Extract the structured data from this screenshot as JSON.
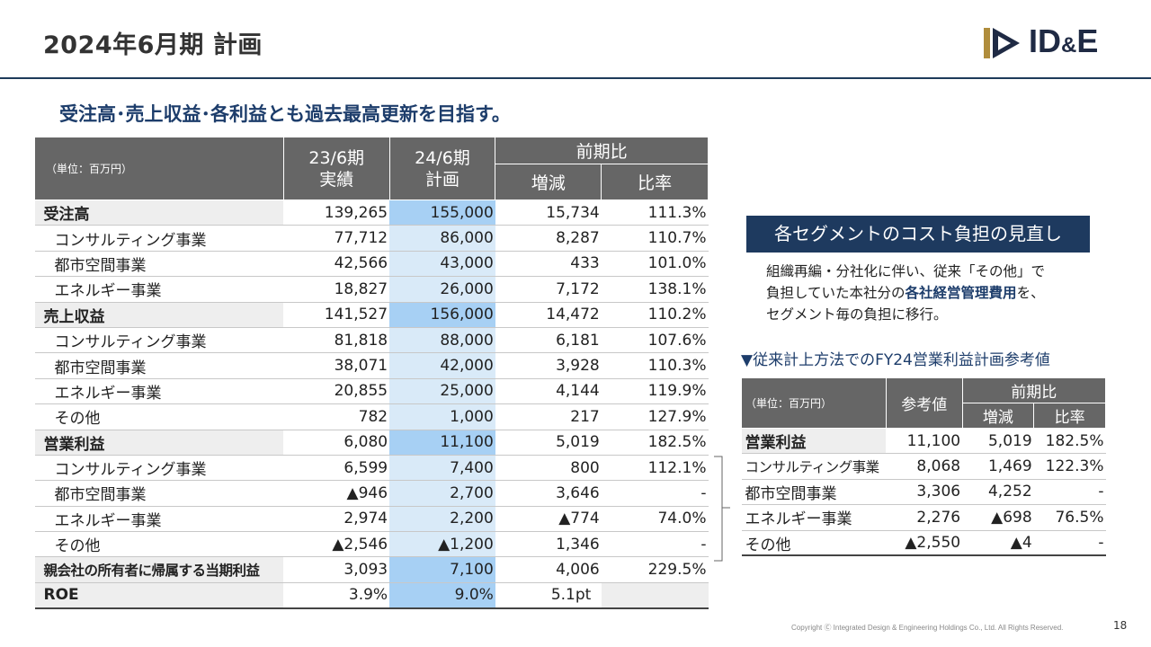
{
  "header": {
    "title": "2024年6月期 計画",
    "logo_text_a": "ID",
    "logo_text_amp": "&",
    "logo_text_b": "E"
  },
  "subtitle": "受注高･売上収益･各利益とも過去最高更新を目指す。",
  "main_table": {
    "unit": "（単位：百万円）",
    "col_23_line1": "23/6期",
    "col_23_line2": "実績",
    "col_24_line1": "24/6期",
    "col_24_line2": "計画",
    "col_yoy": "前期比",
    "col_diff": "増減",
    "col_ratio": "比率",
    "rows": [
      {
        "label": "受注高",
        "a": "139,265",
        "b": "155,000",
        "c": "15,734",
        "d": "111.3%"
      },
      {
        "label": "コンサルティング事業",
        "a": "77,712",
        "b": "86,000",
        "c": "8,287",
        "d": "110.7%"
      },
      {
        "label": "都市空間事業",
        "a": "42,566",
        "b": "43,000",
        "c": "433",
        "d": "101.0%"
      },
      {
        "label": "エネルギー事業",
        "a": "18,827",
        "b": "26,000",
        "c": "7,172",
        "d": "138.1%"
      },
      {
        "label": "売上収益",
        "a": "141,527",
        "b": "156,000",
        "c": "14,472",
        "d": "110.2%"
      },
      {
        "label": "コンサルティング事業",
        "a": "81,818",
        "b": "88,000",
        "c": "6,181",
        "d": "107.6%"
      },
      {
        "label": "都市空間事業",
        "a": "38,071",
        "b": "42,000",
        "c": "3,928",
        "d": "110.3%"
      },
      {
        "label": "エネルギー事業",
        "a": "20,855",
        "b": "25,000",
        "c": "4,144",
        "d": "119.9%"
      },
      {
        "label": "その他",
        "a": "782",
        "b": "1,000",
        "c": "217",
        "d": "127.9%"
      },
      {
        "label": "営業利益",
        "a": "6,080",
        "b": "11,100",
        "c": "5,019",
        "d": "182.5%"
      },
      {
        "label": "コンサルティング事業",
        "a": "6,599",
        "b": "7,400",
        "c": "800",
        "d": "112.1%"
      },
      {
        "label": "都市空間事業",
        "a": "▲946",
        "b": "2,700",
        "c": "3,646",
        "d": "-"
      },
      {
        "label": "エネルギー事業",
        "a": "2,974",
        "b": "2,200",
        "c": "▲774",
        "d": "74.0%"
      },
      {
        "label": "その他",
        "a": "▲2,546",
        "b": "▲1,200",
        "c": "1,346",
        "d": "-"
      },
      {
        "label": "親会社の所有者に帰属する当期利益",
        "a": "3,093",
        "b": "7,100",
        "c": "4,006",
        "d": "229.5%"
      },
      {
        "label": "ROE",
        "a": "3.9%",
        "b": "9.0%",
        "c": "5.1pt",
        "d": ""
      }
    ]
  },
  "cost_box": {
    "title": "各セグメントのコスト負担の見直し",
    "line1": "組織再編・分社化に伴い、従来「その他」で",
    "line2_a": "負担していた本社分の",
    "line2_b": "各社経営管理費用",
    "line2_c": "を、",
    "line3": "セグメント毎の負担に移行。"
  },
  "ref": {
    "title": "▼従来計上方法でのFY24営業利益計画参考値",
    "unit": "（単位：百万円）",
    "col_ref": "参考値",
    "col_yoy": "前期比",
    "col_diff": "増減",
    "col_ratio": "比率",
    "rows": [
      {
        "label": "営業利益",
        "a": "11,100",
        "b": "5,019",
        "c": "182.5%"
      },
      {
        "label": "コンサルティング事業",
        "a": "8,068",
        "b": "1,469",
        "c": "122.3%"
      },
      {
        "label": "都市空間事業",
        "a": "3,306",
        "b": "4,252",
        "c": "-"
      },
      {
        "label": "エネルギー事業",
        "a": "2,276",
        "b": "▲698",
        "c": "76.5%"
      },
      {
        "label": "その他",
        "a": "▲2,550",
        "b": "▲4",
        "c": "-"
      }
    ]
  },
  "footer": {
    "copyright": "Copyright Ⓒ Integrated Design & Engineering Holdings Co., Ltd.  All Rights Reserved.",
    "page": "18"
  },
  "colors": {
    "navy": "#1e3a5f",
    "header_gray": "#666666",
    "highlight_light": "#d9eaf8",
    "highlight_strong": "#a7d0f4",
    "logo_gold": "#b08d3c"
  }
}
